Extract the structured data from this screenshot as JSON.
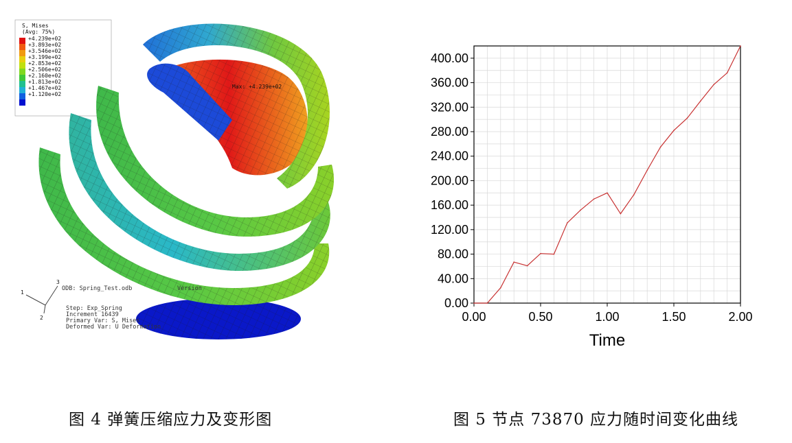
{
  "figure4": {
    "legend_title": "S, Mises",
    "legend_subtitle": "(Avg: 75%)",
    "legend_values": [
      "+4.239e+02",
      "+3.893e+02",
      "+3.546e+02",
      "+3.199e+02",
      "+2.853e+02",
      "+2.506e+02",
      "+2.160e+02",
      "+1.813e+02",
      "+1.467e+02",
      "+1.120e+02"
    ],
    "legend_colors": [
      "#e01010",
      "#f05a10",
      "#f09a10",
      "#e8d010",
      "#c0e010",
      "#80d820",
      "#40c838",
      "#20c090",
      "#20b0d8",
      "#1060e0",
      "#0010d0"
    ],
    "max_label": "Max: +4.239e+02",
    "odb_line": "ODB: Spring_Test.odb",
    "odb_version": "Version",
    "step_line": "Step: Exp_Spring",
    "increment_line": "Increment 16439",
    "primary_var_line": "Primary Var: S, Mises",
    "deformed_var_line": "Deformed Var: U  Deformation",
    "axis_1": "1",
    "axis_2": "2",
    "axis_3": "3",
    "caption": "图 4  弹簧压缩应力及变形图"
  },
  "figure5": {
    "caption": "图 5  节点 73870 应力随时间变化曲线"
  },
  "chart_data": {
    "type": "line",
    "title": "",
    "xlabel": "Time",
    "ylabel": "",
    "xlim": [
      0.0,
      2.0
    ],
    "ylim": [
      0.0,
      420.0
    ],
    "x_tick_labels": [
      "0.00",
      "0.50",
      "1.00",
      "1.50",
      "2.00"
    ],
    "x_ticks": [
      0.0,
      0.5,
      1.0,
      1.5,
      2.0
    ],
    "y_tick_labels": [
      "0.00",
      "40.00",
      "80.00",
      "120.00",
      "160.00",
      "200.00",
      "240.00",
      "280.00",
      "320.00",
      "360.00",
      "400.00"
    ],
    "y_ticks": [
      0,
      40,
      80,
      120,
      160,
      200,
      240,
      280,
      320,
      360,
      400
    ],
    "grid": true,
    "line_color": "#c83232",
    "series": [
      {
        "name": "node-73870-stress",
        "x": [
          0.0,
          0.1,
          0.2,
          0.3,
          0.4,
          0.5,
          0.6,
          0.7,
          0.8,
          0.9,
          1.0,
          1.1,
          1.2,
          1.3,
          1.4,
          1.5,
          1.6,
          1.7,
          1.8,
          1.9,
          2.0
        ],
        "values": [
          0,
          0,
          25,
          67,
          61,
          81,
          80,
          131,
          152,
          170,
          180,
          146,
          177,
          217,
          255,
          282,
          302,
          330,
          357,
          376,
          423
        ]
      }
    ]
  }
}
